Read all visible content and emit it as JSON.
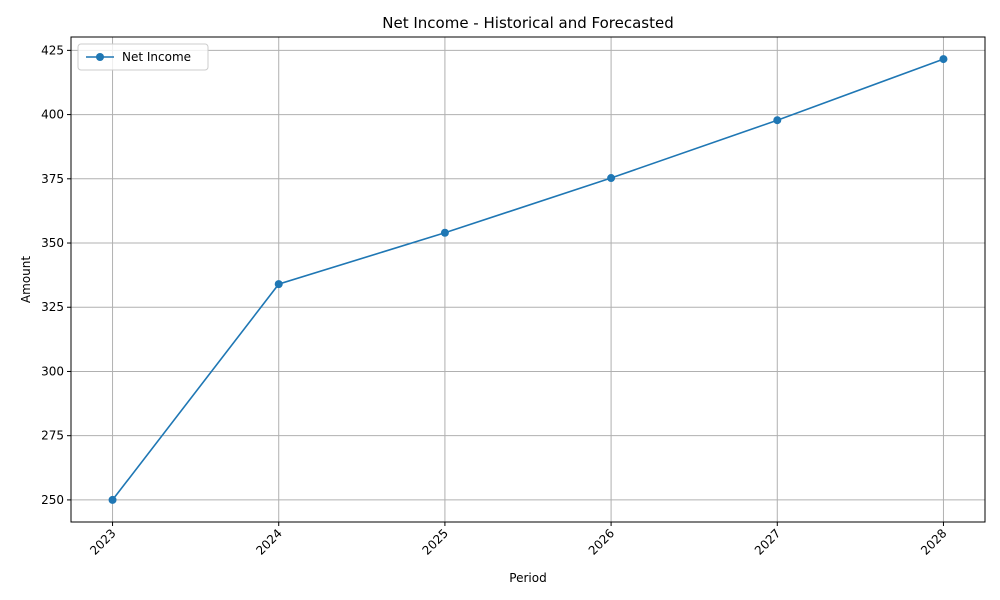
{
  "chart_data": {
    "type": "line",
    "title": "Net Income - Historical and Forecasted",
    "xlabel": "Period",
    "ylabel": "Amount",
    "x": [
      "2023",
      "2024",
      "2025",
      "2026",
      "2027",
      "2028"
    ],
    "series": [
      {
        "name": "Net Income",
        "color": "#1f77b4",
        "marker": "circle",
        "values": [
          250,
          334,
          354,
          375.3,
          397.8,
          421.6
        ]
      }
    ],
    "ylim": [
      241.4,
      430.2
    ],
    "yticks": [
      250,
      275,
      300,
      325,
      350,
      375,
      400,
      425
    ],
    "grid": true,
    "legend": "top-left",
    "xtick_rotation": 45
  }
}
